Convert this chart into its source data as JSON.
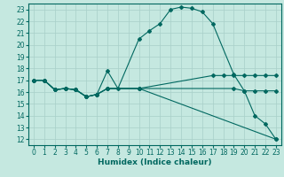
{
  "xlabel": "Humidex (Indice chaleur)",
  "bg_color": "#c5e8e0",
  "grid_color": "#a8cfc8",
  "line_color": "#006860",
  "xlim": [
    -0.5,
    23.5
  ],
  "ylim": [
    11.5,
    23.5
  ],
  "xticks": [
    0,
    1,
    2,
    3,
    4,
    5,
    6,
    7,
    8,
    9,
    10,
    11,
    12,
    13,
    14,
    15,
    16,
    17,
    18,
    19,
    20,
    21,
    22,
    23
  ],
  "yticks": [
    12,
    13,
    14,
    15,
    16,
    17,
    18,
    19,
    20,
    21,
    22,
    23
  ],
  "line1_x": [
    0,
    1,
    2,
    3,
    4,
    5,
    6,
    7,
    8,
    10,
    11,
    12,
    13,
    14,
    15,
    16,
    17,
    19,
    20,
    21,
    22,
    23
  ],
  "line1_y": [
    17,
    17,
    16.2,
    16.3,
    16.2,
    15.6,
    15.8,
    17.8,
    16.3,
    20.5,
    21.2,
    21.8,
    23.0,
    23.2,
    23.1,
    22.8,
    21.8,
    17.5,
    16.1,
    14.0,
    13.3,
    12.0
  ],
  "line2_x": [
    0,
    1,
    2,
    3,
    4,
    5,
    6,
    7,
    10,
    19,
    20,
    21,
    22,
    23
  ],
  "line2_y": [
    17,
    17,
    16.2,
    16.3,
    16.2,
    15.6,
    15.8,
    16.3,
    16.3,
    16.3,
    16.1,
    16.1,
    16.1,
    16.1
  ],
  "line3_x": [
    0,
    1,
    2,
    3,
    4,
    5,
    6,
    7,
    10,
    17,
    18,
    19,
    20,
    21,
    22,
    23
  ],
  "line3_y": [
    17,
    17,
    16.2,
    16.3,
    16.2,
    15.6,
    15.8,
    16.3,
    16.3,
    17.4,
    17.4,
    17.4,
    17.4,
    17.4,
    17.4,
    17.4
  ],
  "line4_x": [
    0,
    1,
    2,
    3,
    4,
    5,
    6,
    7,
    10,
    23
  ],
  "line4_y": [
    17,
    17,
    16.2,
    16.3,
    16.2,
    15.6,
    15.8,
    16.3,
    16.3,
    12.0
  ],
  "tick_fontsize": 5.5,
  "xlabel_fontsize": 6.5,
  "marker_size": 2.0,
  "linewidth": 0.8
}
